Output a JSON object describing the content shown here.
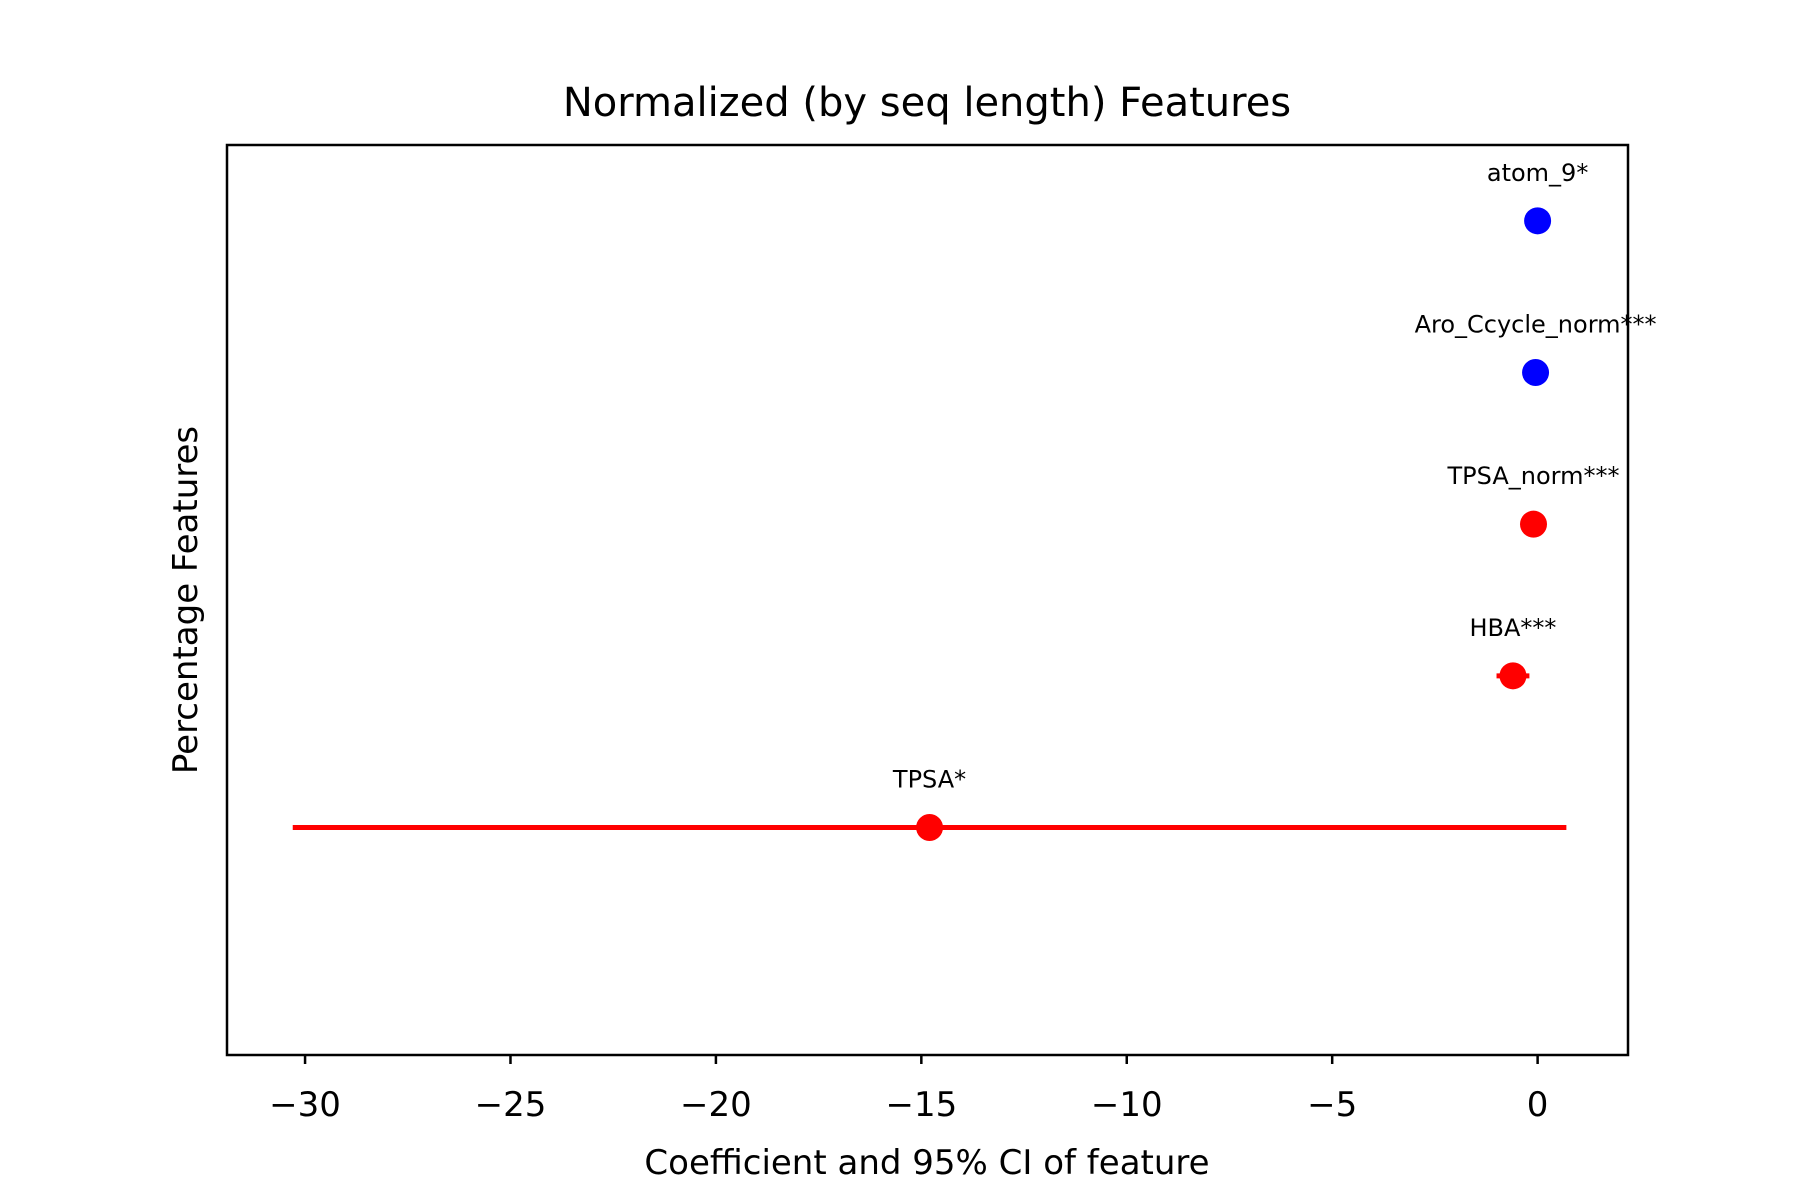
{
  "chart_data": {
    "type": "scatter",
    "title": "Normalized (by seq length) Features",
    "xlabel": "Coefficient and 95% CI of feature",
    "ylabel": "Percentage Features",
    "xlim": [
      -31.9,
      2.2
    ],
    "ylim": [
      -0.5,
      5.5
    ],
    "xticks": [
      -30,
      -25,
      -20,
      -15,
      -10,
      -5,
      0
    ],
    "xtick_labels": [
      "−30",
      "−25",
      "−20",
      "−15",
      "−10",
      "−5",
      "0"
    ],
    "grid": false,
    "legend": null,
    "points": [
      {
        "label": "atom_9*",
        "y": 5,
        "coef": 0.0,
        "ci": [
          -0.05,
          0.05
        ],
        "color": "#0000ff"
      },
      {
        "label": "Aro_Ccycle_norm***",
        "y": 4,
        "coef": -0.05,
        "ci": [
          -0.1,
          0.0
        ],
        "color": "#0000ff"
      },
      {
        "label": "TPSA_norm***",
        "y": 3,
        "coef": -0.1,
        "ci": [
          -0.15,
          -0.05
        ],
        "color": "#ff0000"
      },
      {
        "label": "HBA***",
        "y": 2,
        "coef": -0.6,
        "ci": [
          -1.0,
          -0.2
        ],
        "color": "#ff0000"
      },
      {
        "label": "TPSA*",
        "y": 1,
        "coef": -14.8,
        "ci": [
          -30.3,
          0.7
        ],
        "color": "#ff0000"
      }
    ]
  }
}
